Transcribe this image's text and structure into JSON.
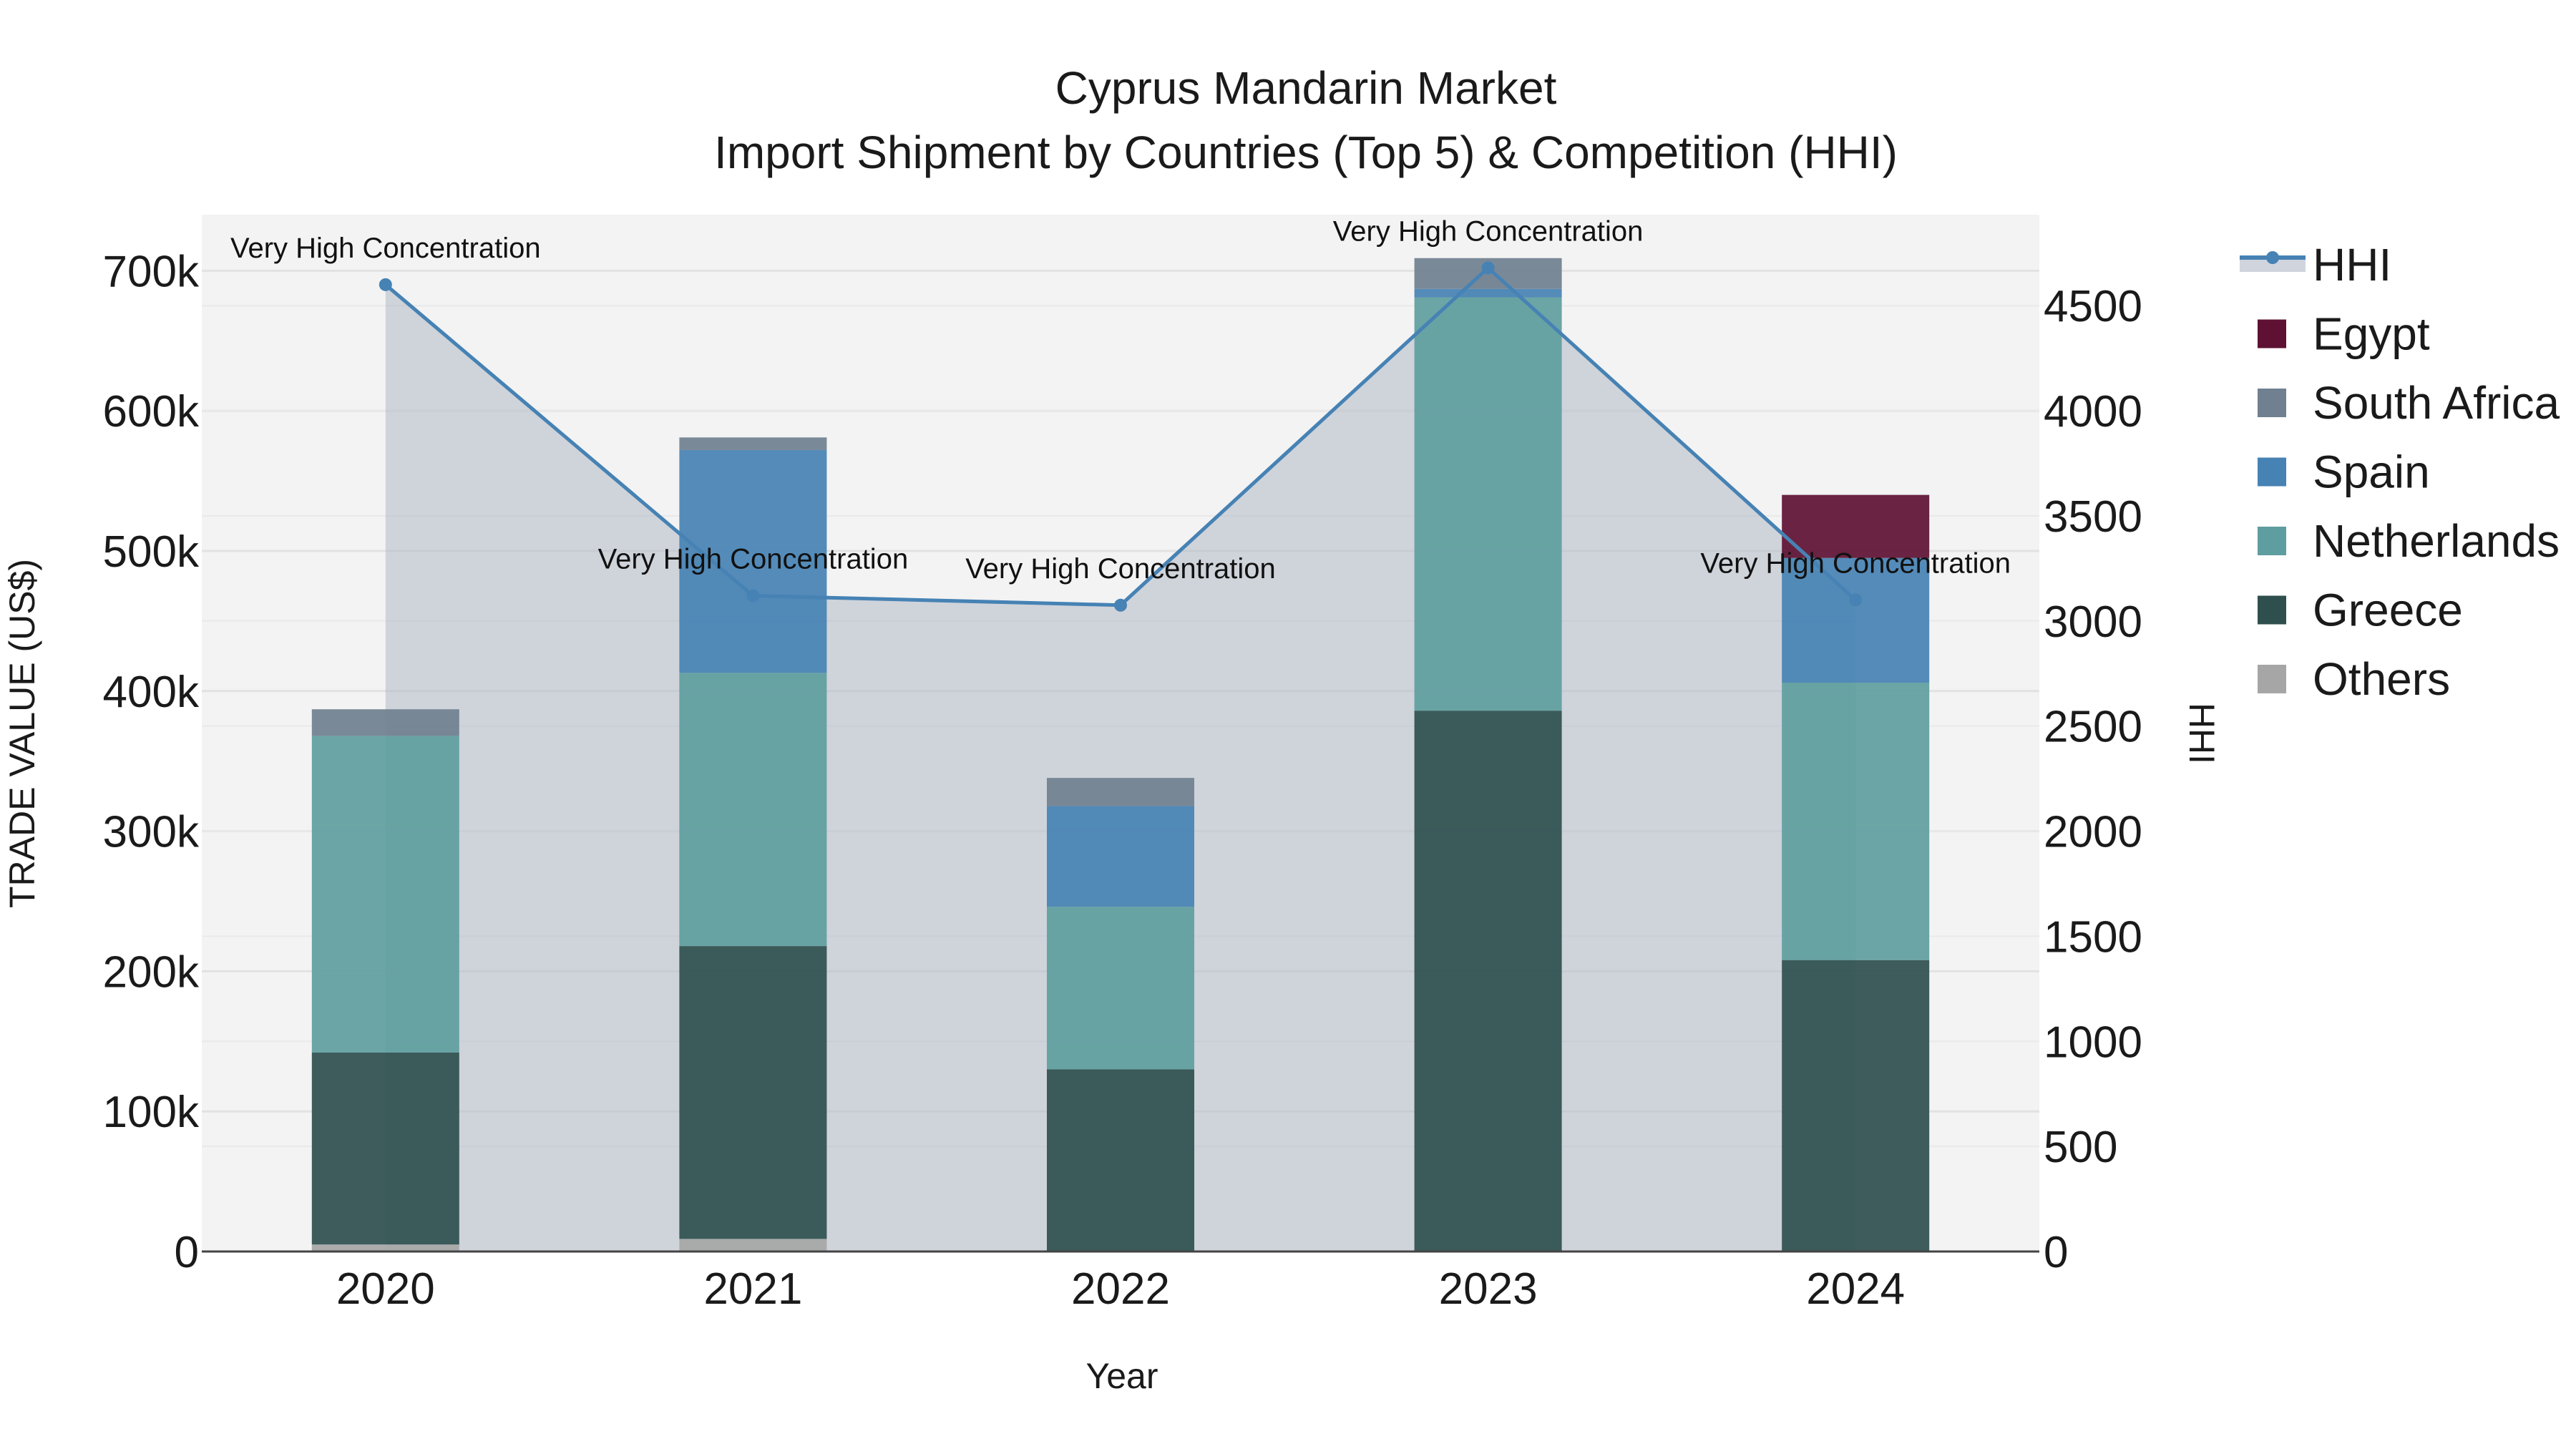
{
  "chart_data": {
    "type": "bar",
    "title_line1": "Cyprus Mandarin Market",
    "title_line2": "Import Shipment by Countries (Top 5) & Competition (HHI)",
    "xlabel": "Year",
    "ylabel": "TRADE VALUE (US$)",
    "y2label": "HHI",
    "categories": [
      "2020",
      "2021",
      "2022",
      "2023",
      "2024"
    ],
    "ylim": [
      0,
      740000
    ],
    "y2lim": [
      0,
      4933
    ],
    "y_ticks": [
      0,
      100000,
      200000,
      300000,
      400000,
      500000,
      600000,
      700000
    ],
    "y_tick_labels": [
      "0",
      "100k",
      "200k",
      "300k",
      "400k",
      "500k",
      "600k",
      "700k"
    ],
    "y2_ticks": [
      0,
      500,
      1000,
      1500,
      2000,
      2500,
      3000,
      3500,
      4000,
      4500
    ],
    "y2_tick_labels": [
      "0",
      "500",
      "1000",
      "1500",
      "2000",
      "2500",
      "3000",
      "3500",
      "4000",
      "4500"
    ],
    "series": [
      {
        "name": "Others",
        "color": "#a6a6a6",
        "values": [
          5000,
          9000,
          0,
          0,
          0
        ]
      },
      {
        "name": "Greece",
        "color": "#2f4f4f",
        "values": [
          137000,
          209000,
          130000,
          386000,
          208000
        ]
      },
      {
        "name": "Netherlands",
        "color": "#5f9ea0",
        "values": [
          226000,
          195000,
          116000,
          295000,
          198000
        ]
      },
      {
        "name": "Spain",
        "color": "#4682b4",
        "values": [
          0,
          159000,
          72000,
          6000,
          89000
        ]
      },
      {
        "name": "South Africa",
        "color": "#708090",
        "values": [
          19000,
          9000,
          20000,
          22000,
          0
        ]
      },
      {
        "name": "Egypt",
        "color": "#5e1133",
        "values": [
          0,
          0,
          0,
          0,
          45000
        ]
      }
    ],
    "hhi": {
      "name": "HHI",
      "color": "#4682b4",
      "values": [
        4600,
        3120,
        3075,
        4680,
        3100
      ],
      "annotations": [
        "Very High Concentration",
        "Very High Concentration",
        "Very High Concentration",
        "Very High Concentration",
        "Very High Concentration"
      ]
    },
    "legend_order": [
      "HHI",
      "Egypt",
      "South Africa",
      "Spain",
      "Netherlands",
      "Greece",
      "Others"
    ]
  }
}
